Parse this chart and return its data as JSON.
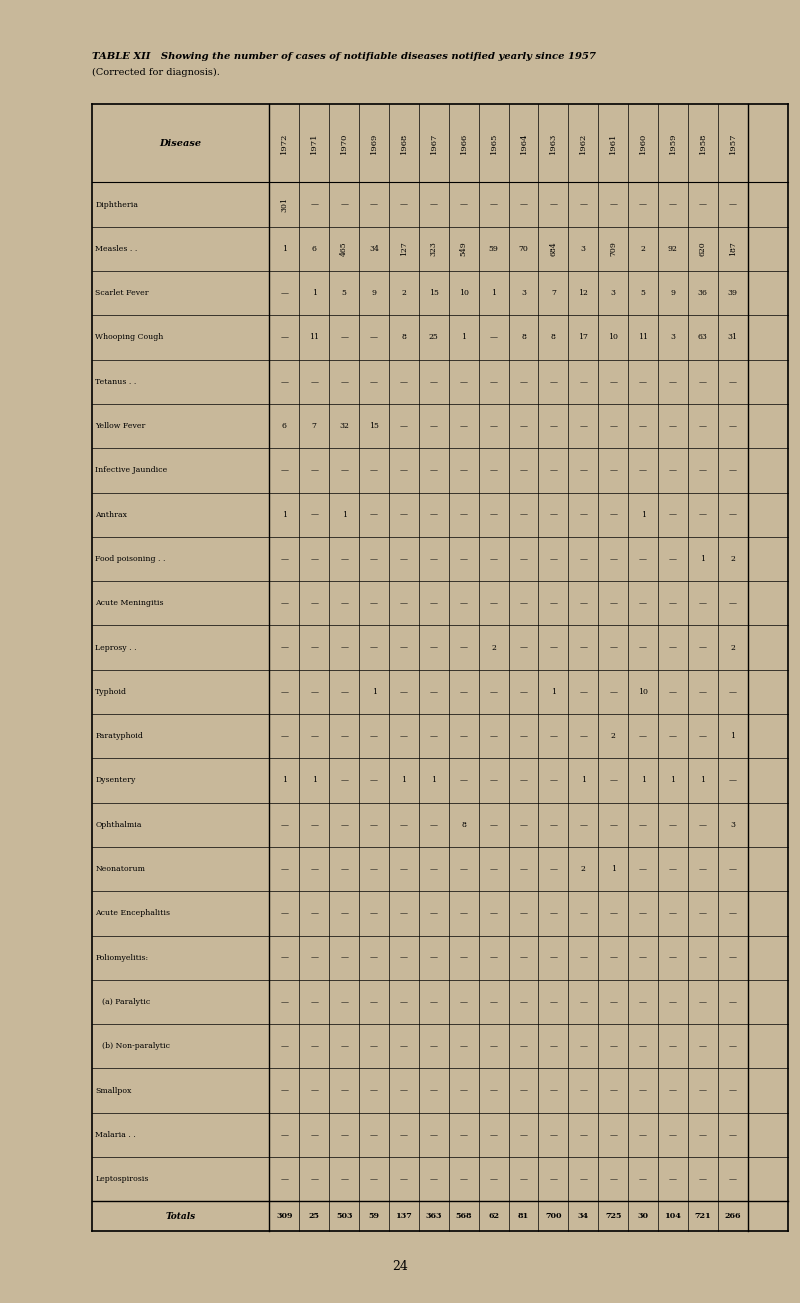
{
  "title": "TABLE XII   Showing the number of cases of notifiable diseases notified yearly since 1957",
  "subtitle": "(Corrected for diagnosis).",
  "page_number": "24",
  "background_color": "#c8b89a",
  "diseases": [
    "Diphtheria",
    "Measles . .",
    "Scarlet Fever",
    "Whooping Cough",
    "Tetanus . .",
    "Yellow Fever",
    "Infective Jaundice",
    "Anthrax",
    "Food poisoning . .",
    "Acute Meningitis",
    "Leprosy . .",
    "Typhoid",
    "Paratyphoid",
    "Dysentery",
    "Ophthalmia",
    "Neonatorum",
    "Acute Encephalitis",
    "Poliomyelitis:",
    "  (a) Paralytic",
    "  (b) Non-paralytic",
    "Smallpox",
    "Malaria . .",
    "Leptospirosis"
  ],
  "years": [
    "1972",
    "1971",
    "1970",
    "1969",
    "1968",
    "1967",
    "1966",
    "1965",
    "1964",
    "1963",
    "1962",
    "1961",
    "1960",
    "1959",
    "1958",
    "1957"
  ],
  "data": {
    "1957": [
      "-",
      "187",
      "39",
      "31",
      "-",
      "-",
      "-",
      "-",
      "2",
      "-",
      "2",
      "-",
      "1",
      "-",
      "3",
      "-",
      "-",
      "-",
      "-",
      "-",
      "-",
      "-",
      "-"
    ],
    "1958": [
      "-",
      "620",
      "36",
      "63",
      "-",
      "-",
      "-",
      "-",
      "1",
      "-",
      "-",
      "-",
      "-",
      "1",
      "-",
      "-",
      "-",
      "-",
      "-",
      "-",
      "-",
      "-",
      "-"
    ],
    "1959": [
      "-",
      "92",
      "9",
      "3",
      "-",
      "-",
      "-",
      "-",
      "-",
      "-",
      "-",
      "-",
      "-",
      "1",
      "-",
      "-",
      "-",
      "-",
      "-",
      "-",
      "-",
      "-",
      "-"
    ],
    "1960": [
      "-",
      "2",
      "5",
      "11",
      "-",
      "-",
      "-",
      "1",
      "-",
      "-",
      "-",
      "10",
      "-",
      "1",
      "-",
      "-",
      "-",
      "-",
      "-",
      "-",
      "-",
      "-",
      "-"
    ],
    "1961": [
      "-",
      "709",
      "3",
      "10",
      "-",
      "-",
      "-",
      "-",
      "-",
      "-",
      "-",
      "-",
      "2",
      "-",
      "-",
      "1",
      "-",
      "-",
      "-",
      "-",
      "-",
      "-",
      "-"
    ],
    "1962": [
      "-",
      "3",
      "12",
      "17",
      "-",
      "-",
      "-",
      "-",
      "-",
      "-",
      "-",
      "-",
      "-",
      "1",
      "-",
      "2",
      "-",
      "-",
      "-",
      "-",
      "-",
      "-",
      "-"
    ],
    "1963": [
      "-",
      "684",
      "7",
      "8",
      "-",
      "-",
      "-",
      "-",
      "-",
      "-",
      "-",
      "1",
      "-",
      "-",
      "-",
      "-",
      "-",
      "-",
      "-",
      "-",
      "-",
      "-",
      "-"
    ],
    "1964": [
      "-",
      "70",
      "3",
      "8",
      "-",
      "-",
      "-",
      "-",
      "-",
      "-",
      "-",
      "-",
      "-",
      "-",
      "-",
      "-",
      "-",
      "-",
      "-",
      "-",
      "-",
      "-",
      "-"
    ],
    "1965": [
      "-",
      "59",
      "1",
      "-",
      "-",
      "-",
      "-",
      "-",
      "-",
      "-",
      "2",
      "-",
      "-",
      "-",
      "-",
      "-",
      "-",
      "-",
      "-",
      "-",
      "-",
      "-",
      "-"
    ],
    "1966": [
      "-",
      "549",
      "10",
      "1",
      "-",
      "-",
      "-",
      "-",
      "-",
      "-",
      "-",
      "-",
      "-",
      "-",
      "8",
      "-",
      "-",
      "-",
      "-",
      "-",
      "-",
      "-",
      "-"
    ],
    "1967": [
      "-",
      "323",
      "15",
      "25",
      "-",
      "-",
      "-",
      "-",
      "-",
      "-",
      "-",
      "-",
      "-",
      "1",
      "-",
      "-",
      "-",
      "-",
      "-",
      "-",
      "-",
      "-",
      "-"
    ],
    "1968": [
      "-",
      "127",
      "2",
      "8",
      "-",
      "-",
      "-",
      "-",
      "-",
      "-",
      "-",
      "-",
      "-",
      "1",
      "-",
      "-",
      "-",
      "-",
      "-",
      "-",
      "-",
      "-",
      "-"
    ],
    "1969": [
      "-",
      "34",
      "9",
      "-",
      "-",
      "15",
      "-",
      "-",
      "-",
      "-",
      "-",
      "1",
      "-",
      "-",
      "-",
      "-",
      "-",
      "-",
      "-",
      "-",
      "-",
      "-",
      "-"
    ],
    "1970": [
      "-",
      "465",
      "5",
      "-",
      "-",
      "32",
      "-",
      "1",
      "-",
      "-",
      "-",
      "-",
      "-",
      "-",
      "-",
      "-",
      "-",
      "-",
      "-",
      "-",
      "-",
      "-",
      "-"
    ],
    "1971": [
      "-",
      "6",
      "1",
      "11",
      "-",
      "7",
      "-",
      "-",
      "-",
      "-",
      "-",
      "-",
      "-",
      "1",
      "-",
      "-",
      "-",
      "-",
      "-",
      "-",
      "-",
      "-",
      "-"
    ],
    "1972": [
      "301",
      "1",
      "-",
      "-",
      "-",
      "6",
      "-",
      "1",
      "-",
      "-",
      "-",
      "-",
      "-",
      "1",
      "-",
      "-",
      "-",
      "-",
      "-",
      "-",
      "-",
      "-",
      "-"
    ]
  },
  "totals": {
    "1957": "266",
    "1958": "721",
    "1959": "104",
    "1960": "30",
    "1961": "725",
    "1962": "34",
    "1963": "700",
    "1964": "81",
    "1965": "62",
    "1966": "568",
    "1967": "363",
    "1968": "137",
    "1969": "59",
    "1970": "503",
    "1971": "25",
    "1972": "309"
  }
}
